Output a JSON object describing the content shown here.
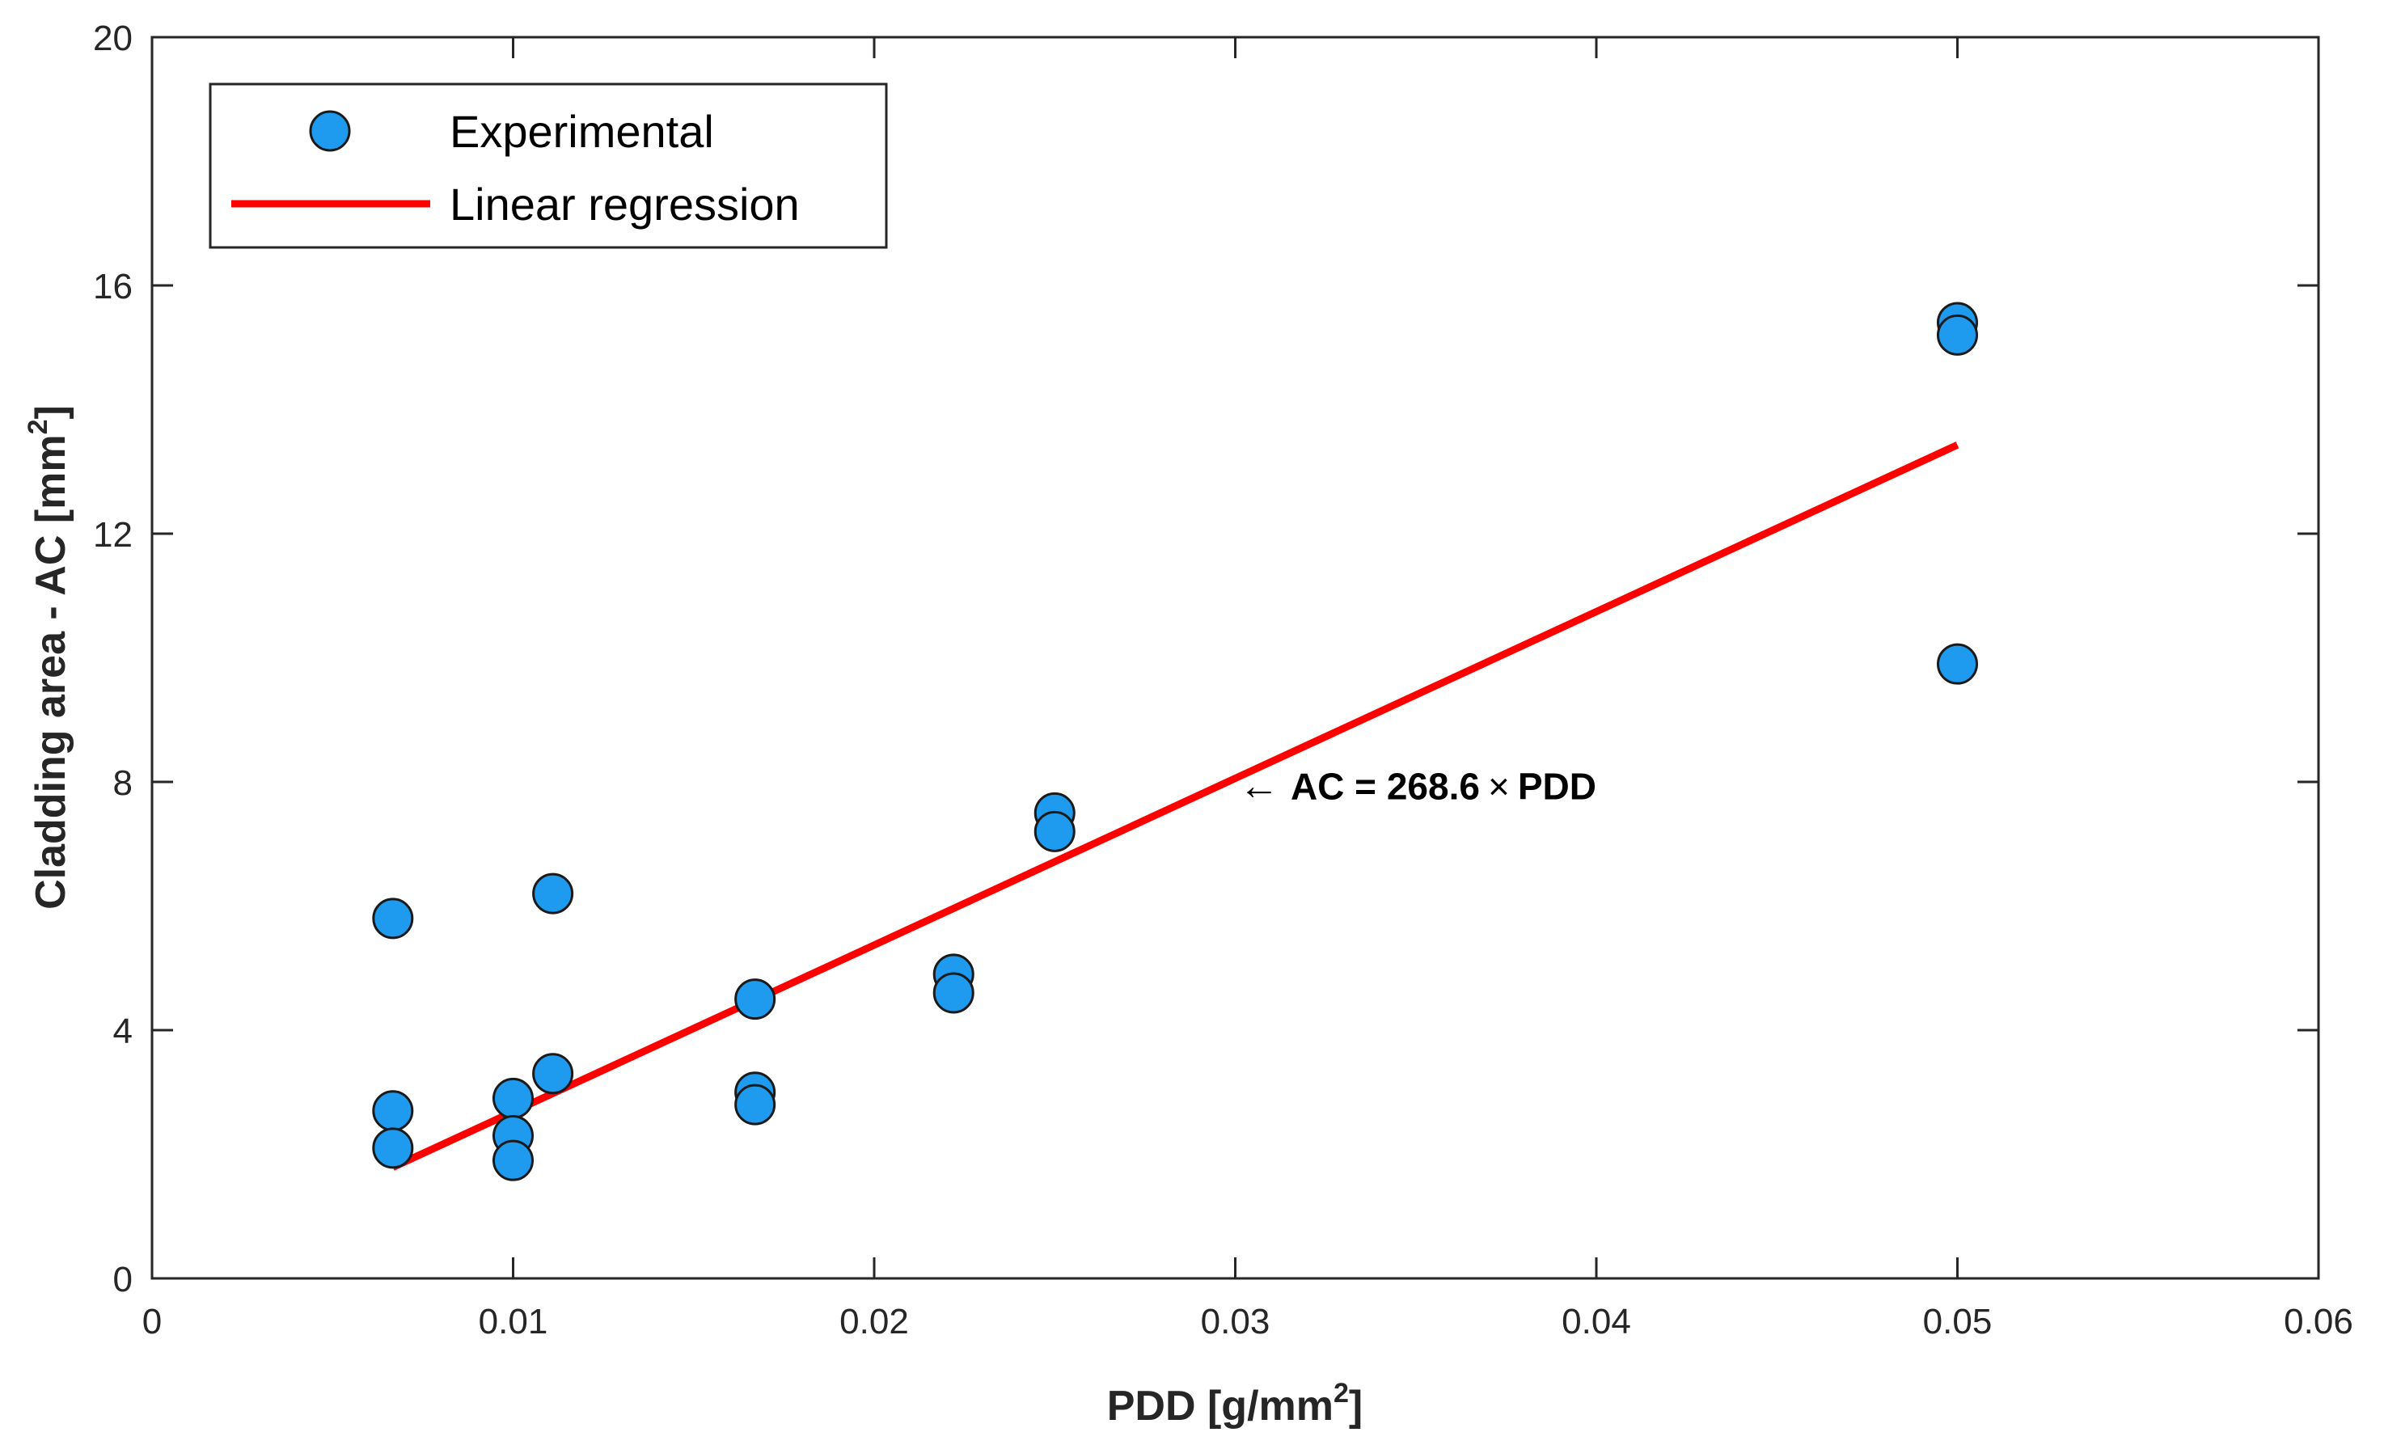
{
  "chart_data": {
    "type": "scatter",
    "title": "",
    "xlabel": "PDD [g/mm",
    "xlabel_sup": "2",
    "xlabel_end": "]",
    "ylabel": "Cladding area - AC [mm",
    "ylabel_sup": "2",
    "ylabel_end": "]",
    "xlim": [
      0,
      0.06
    ],
    "ylim": [
      0,
      20
    ],
    "xticks": [
      0,
      0.01,
      0.02,
      0.03,
      0.04,
      0.05,
      0.06
    ],
    "xtick_labels": [
      "0",
      "0.01",
      "0.02",
      "0.03",
      "0.04",
      "0.05",
      "0.06"
    ],
    "yticks": [
      0,
      4,
      8,
      12,
      16,
      20
    ],
    "ytick_labels": [
      "0",
      "4",
      "8",
      "12",
      "16",
      "20"
    ],
    "grid": false,
    "legend_position": "top-left",
    "series": [
      {
        "name": "Experimental",
        "kind": "scatter",
        "color": "#1E9BEF",
        "edge_color": "#1a1a1a",
        "x": [
          0.00667,
          0.00667,
          0.00667,
          0.01,
          0.01,
          0.01,
          0.0111,
          0.0111,
          0.0167,
          0.0167,
          0.0167,
          0.0222,
          0.0222,
          0.025,
          0.025,
          0.05,
          0.05,
          0.05
        ],
        "y": [
          5.8,
          2.7,
          2.1,
          2.9,
          2.3,
          1.9,
          6.2,
          3.3,
          4.5,
          3.0,
          2.8,
          4.9,
          4.6,
          7.5,
          7.2,
          15.4,
          15.2,
          9.9
        ]
      },
      {
        "name": "Linear regression",
        "kind": "line",
        "color": "#FF0000",
        "slope": 268.6,
        "x": [
          0.00667,
          0.05
        ],
        "y": [
          1.79,
          13.43
        ]
      }
    ],
    "annotations": [
      {
        "arrow": "←",
        "text": "AC = 268.6",
        "times": "×",
        "text_end": "PDD",
        "x": 0.0301,
        "y": 7.72
      }
    ]
  }
}
